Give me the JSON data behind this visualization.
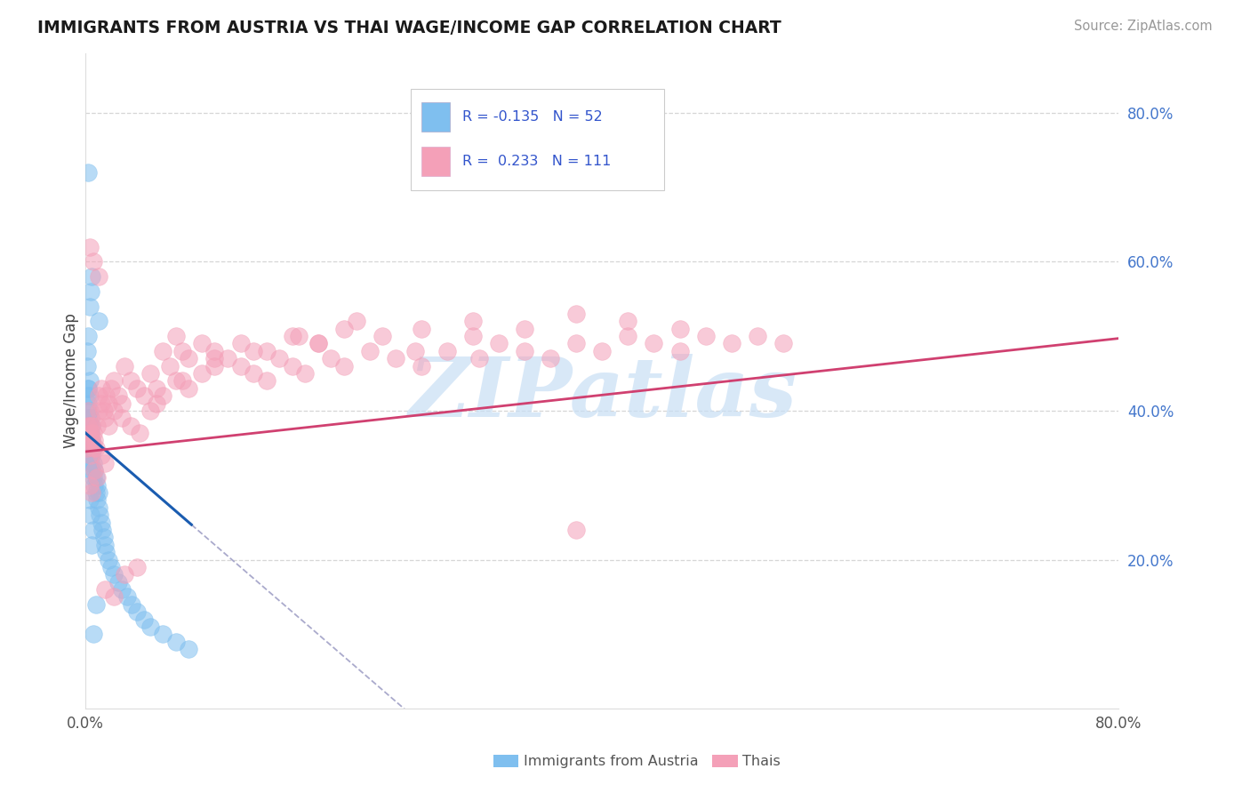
{
  "title": "IMMIGRANTS FROM AUSTRIA VS THAI WAGE/INCOME GAP CORRELATION CHART",
  "source": "Source: ZipAtlas.com",
  "ylabel": "Wage/Income Gap",
  "xlim": [
    0.0,
    0.8
  ],
  "ylim": [
    0.0,
    0.88
  ],
  "blue_color": "#7fbfef",
  "pink_color": "#f4a0b8",
  "blue_line_color": "#1a5cb0",
  "pink_line_color": "#d04070",
  "legend_text_color": "#3355cc",
  "legend_r_color": "#cc2244",
  "watermark": "ZIPatlas",
  "watermark_color": "#c8dff5",
  "grid_color": "#cccccc",
  "right_tick_color": "#4477cc",
  "austria_x": [
    0.001,
    0.001,
    0.001,
    0.001,
    0.002,
    0.002,
    0.002,
    0.002,
    0.002,
    0.003,
    0.003,
    0.003,
    0.003,
    0.003,
    0.004,
    0.004,
    0.004,
    0.004,
    0.005,
    0.005,
    0.005,
    0.005,
    0.006,
    0.006,
    0.006,
    0.007,
    0.007,
    0.008,
    0.008,
    0.009,
    0.009,
    0.01,
    0.01,
    0.011,
    0.012,
    0.013,
    0.014,
    0.015,
    0.016,
    0.018,
    0.02,
    0.022,
    0.025,
    0.028,
    0.032,
    0.036,
    0.04,
    0.045,
    0.05,
    0.06,
    0.07,
    0.08
  ],
  "austria_y": [
    0.36,
    0.38,
    0.4,
    0.42,
    0.35,
    0.37,
    0.39,
    0.41,
    0.43,
    0.34,
    0.36,
    0.38,
    0.4,
    0.42,
    0.33,
    0.35,
    0.37,
    0.39,
    0.32,
    0.34,
    0.36,
    0.38,
    0.31,
    0.33,
    0.35,
    0.3,
    0.32,
    0.29,
    0.31,
    0.28,
    0.3,
    0.27,
    0.29,
    0.26,
    0.25,
    0.24,
    0.23,
    0.22,
    0.21,
    0.2,
    0.19,
    0.18,
    0.17,
    0.16,
    0.15,
    0.14,
    0.13,
    0.12,
    0.11,
    0.1,
    0.09,
    0.08
  ],
  "austria_x_outliers": [
    0.002,
    0.003,
    0.002,
    0.001,
    0.001,
    0.003,
    0.002,
    0.01,
    0.004,
    0.005,
    0.004,
    0.003,
    0.006,
    0.005,
    0.008,
    0.006
  ],
  "austria_y_outliers": [
    0.72,
    0.54,
    0.5,
    0.48,
    0.46,
    0.44,
    0.43,
    0.52,
    0.56,
    0.58,
    0.26,
    0.28,
    0.24,
    0.22,
    0.14,
    0.1
  ],
  "thai_x": [
    0.001,
    0.002,
    0.002,
    0.003,
    0.003,
    0.004,
    0.004,
    0.005,
    0.005,
    0.006,
    0.006,
    0.007,
    0.008,
    0.009,
    0.01,
    0.01,
    0.012,
    0.012,
    0.014,
    0.015,
    0.016,
    0.018,
    0.02,
    0.022,
    0.025,
    0.028,
    0.03,
    0.035,
    0.04,
    0.045,
    0.05,
    0.055,
    0.06,
    0.065,
    0.07,
    0.075,
    0.08,
    0.09,
    0.1,
    0.11,
    0.12,
    0.13,
    0.14,
    0.15,
    0.16,
    0.17,
    0.18,
    0.19,
    0.2,
    0.22,
    0.24,
    0.26,
    0.28,
    0.3,
    0.32,
    0.34,
    0.36,
    0.38,
    0.4,
    0.42,
    0.44,
    0.46,
    0.48,
    0.5,
    0.52,
    0.54,
    0.003,
    0.005,
    0.007,
    0.009,
    0.012,
    0.015,
    0.018,
    0.022,
    0.028,
    0.035,
    0.042,
    0.05,
    0.06,
    0.07,
    0.08,
    0.09,
    0.1,
    0.12,
    0.14,
    0.16,
    0.18,
    0.2,
    0.23,
    0.26,
    0.3,
    0.34,
    0.38,
    0.42,
    0.46,
    0.003,
    0.006,
    0.01,
    0.015,
    0.022,
    0.03,
    0.04,
    0.055,
    0.075,
    0.1,
    0.13,
    0.165,
    0.21,
    0.255,
    0.305,
    0.38
  ],
  "thai_y": [
    0.35,
    0.38,
    0.4,
    0.36,
    0.38,
    0.34,
    0.37,
    0.36,
    0.38,
    0.35,
    0.37,
    0.36,
    0.35,
    0.38,
    0.4,
    0.42,
    0.41,
    0.43,
    0.4,
    0.39,
    0.42,
    0.41,
    0.43,
    0.44,
    0.42,
    0.41,
    0.46,
    0.44,
    0.43,
    0.42,
    0.45,
    0.43,
    0.48,
    0.46,
    0.5,
    0.48,
    0.47,
    0.49,
    0.48,
    0.47,
    0.46,
    0.45,
    0.44,
    0.47,
    0.46,
    0.45,
    0.49,
    0.47,
    0.46,
    0.48,
    0.47,
    0.46,
    0.48,
    0.5,
    0.49,
    0.48,
    0.47,
    0.49,
    0.48,
    0.5,
    0.49,
    0.48,
    0.5,
    0.49,
    0.5,
    0.49,
    0.3,
    0.29,
    0.32,
    0.31,
    0.34,
    0.33,
    0.38,
    0.4,
    0.39,
    0.38,
    0.37,
    0.4,
    0.42,
    0.44,
    0.43,
    0.45,
    0.47,
    0.49,
    0.48,
    0.5,
    0.49,
    0.51,
    0.5,
    0.51,
    0.52,
    0.51,
    0.53,
    0.52,
    0.51,
    0.62,
    0.6,
    0.58,
    0.16,
    0.15,
    0.18,
    0.19,
    0.41,
    0.44,
    0.46,
    0.48,
    0.5,
    0.52,
    0.48,
    0.47,
    0.24
  ]
}
